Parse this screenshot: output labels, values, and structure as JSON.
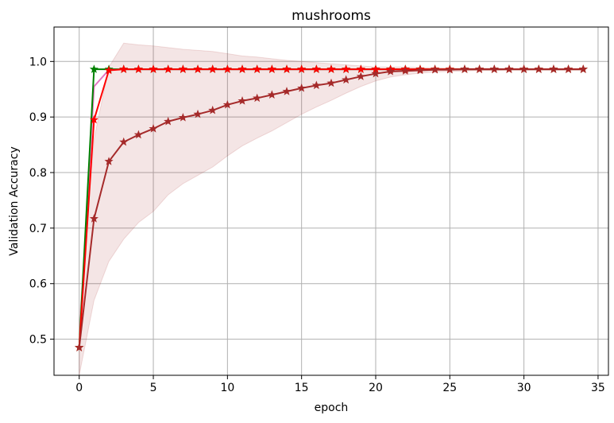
{
  "chart_data": {
    "type": "line",
    "title": "mushrooms",
    "xlabel": "epoch",
    "ylabel": "Validation Accuracy",
    "xlim": [
      -1.7,
      35.7
    ],
    "ylim": [
      0.435,
      1.062
    ],
    "xticks": [
      0,
      5,
      10,
      15,
      20,
      25,
      30,
      35
    ],
    "yticks": [
      0.5,
      0.6,
      0.7,
      0.8,
      0.9,
      1.0
    ],
    "ytick_labels": [
      "0.5",
      "0.6",
      "0.7",
      "0.8",
      "0.9",
      "1.0"
    ],
    "grid": true,
    "x": [
      0,
      1,
      2,
      3,
      4,
      5,
      6,
      7,
      8,
      9,
      10,
      11,
      12,
      13,
      14,
      15,
      16,
      17,
      18,
      19,
      20,
      21,
      22,
      23,
      24,
      25,
      26,
      27,
      28,
      29,
      30,
      31,
      32,
      33,
      34
    ],
    "series": [
      {
        "color": "#e377c2",
        "marker": "none",
        "values": [
          0.485,
          0.955,
          0.985,
          0.986,
          0.986,
          0.986,
          0.986,
          0.986,
          0.986,
          0.986,
          0.986,
          0.986,
          0.986,
          0.986,
          0.986,
          0.986,
          0.986,
          0.986,
          0.986,
          0.986,
          0.986,
          0.986,
          0.986,
          0.986,
          0.986,
          0.986,
          0.986,
          0.986,
          0.986,
          0.986,
          0.986,
          0.986,
          0.986,
          0.986,
          0.986
        ]
      },
      {
        "color": "#008000",
        "marker": "star",
        "values": [
          0.485,
          0.986,
          0.986,
          0.986,
          0.986,
          0.986,
          0.986,
          0.986,
          0.986,
          0.986,
          0.986,
          0.986,
          0.986,
          0.986,
          0.986,
          0.986,
          0.986,
          0.986,
          0.986,
          0.986,
          0.986,
          0.986,
          0.986,
          0.986,
          0.986,
          0.986,
          0.986,
          0.986,
          0.986,
          0.986,
          0.986,
          0.986,
          0.986,
          0.986,
          0.986
        ]
      },
      {
        "color": "#ff0000",
        "marker": "star",
        "values": [
          0.485,
          0.895,
          0.984,
          0.986,
          0.986,
          0.986,
          0.986,
          0.986,
          0.986,
          0.986,
          0.986,
          0.986,
          0.986,
          0.986,
          0.986,
          0.986,
          0.986,
          0.986,
          0.986,
          0.986,
          0.986,
          0.986,
          0.986,
          0.986,
          0.986,
          0.986,
          0.986,
          0.986,
          0.986,
          0.986,
          0.986,
          0.986,
          0.986,
          0.986,
          0.986
        ]
      },
      {
        "color": "#a52a2a",
        "marker": "star",
        "band_color": "#a52a2a",
        "values": [
          0.485,
          0.717,
          0.82,
          0.855,
          0.868,
          0.879,
          0.892,
          0.899,
          0.905,
          0.912,
          0.922,
          0.929,
          0.934,
          0.94,
          0.946,
          0.952,
          0.957,
          0.961,
          0.967,
          0.973,
          0.978,
          0.982,
          0.983,
          0.984,
          0.985,
          0.985,
          0.986,
          0.986,
          0.986,
          0.986,
          0.986,
          0.986,
          0.986,
          0.986,
          0.986
        ],
        "band_lower": [
          0.435,
          0.57,
          0.64,
          0.68,
          0.71,
          0.73,
          0.76,
          0.78,
          0.795,
          0.81,
          0.83,
          0.848,
          0.862,
          0.875,
          0.89,
          0.905,
          0.918,
          0.93,
          0.943,
          0.955,
          0.965,
          0.972,
          0.976,
          0.979,
          0.981,
          0.982,
          0.983,
          0.984,
          0.984,
          0.985,
          0.985,
          0.985,
          0.985,
          0.985,
          0.985
        ],
        "band_upper": [
          0.535,
          0.86,
          0.99,
          1.033,
          1.03,
          1.028,
          1.025,
          1.022,
          1.02,
          1.018,
          1.014,
          1.01,
          1.008,
          1.005,
          1.002,
          1.0,
          0.998,
          0.996,
          0.994,
          0.992,
          0.99,
          0.99,
          0.99,
          0.989,
          0.989,
          0.988,
          0.988,
          0.988,
          0.988,
          0.987,
          0.987,
          0.987,
          0.987,
          0.987,
          0.987
        ]
      }
    ]
  }
}
